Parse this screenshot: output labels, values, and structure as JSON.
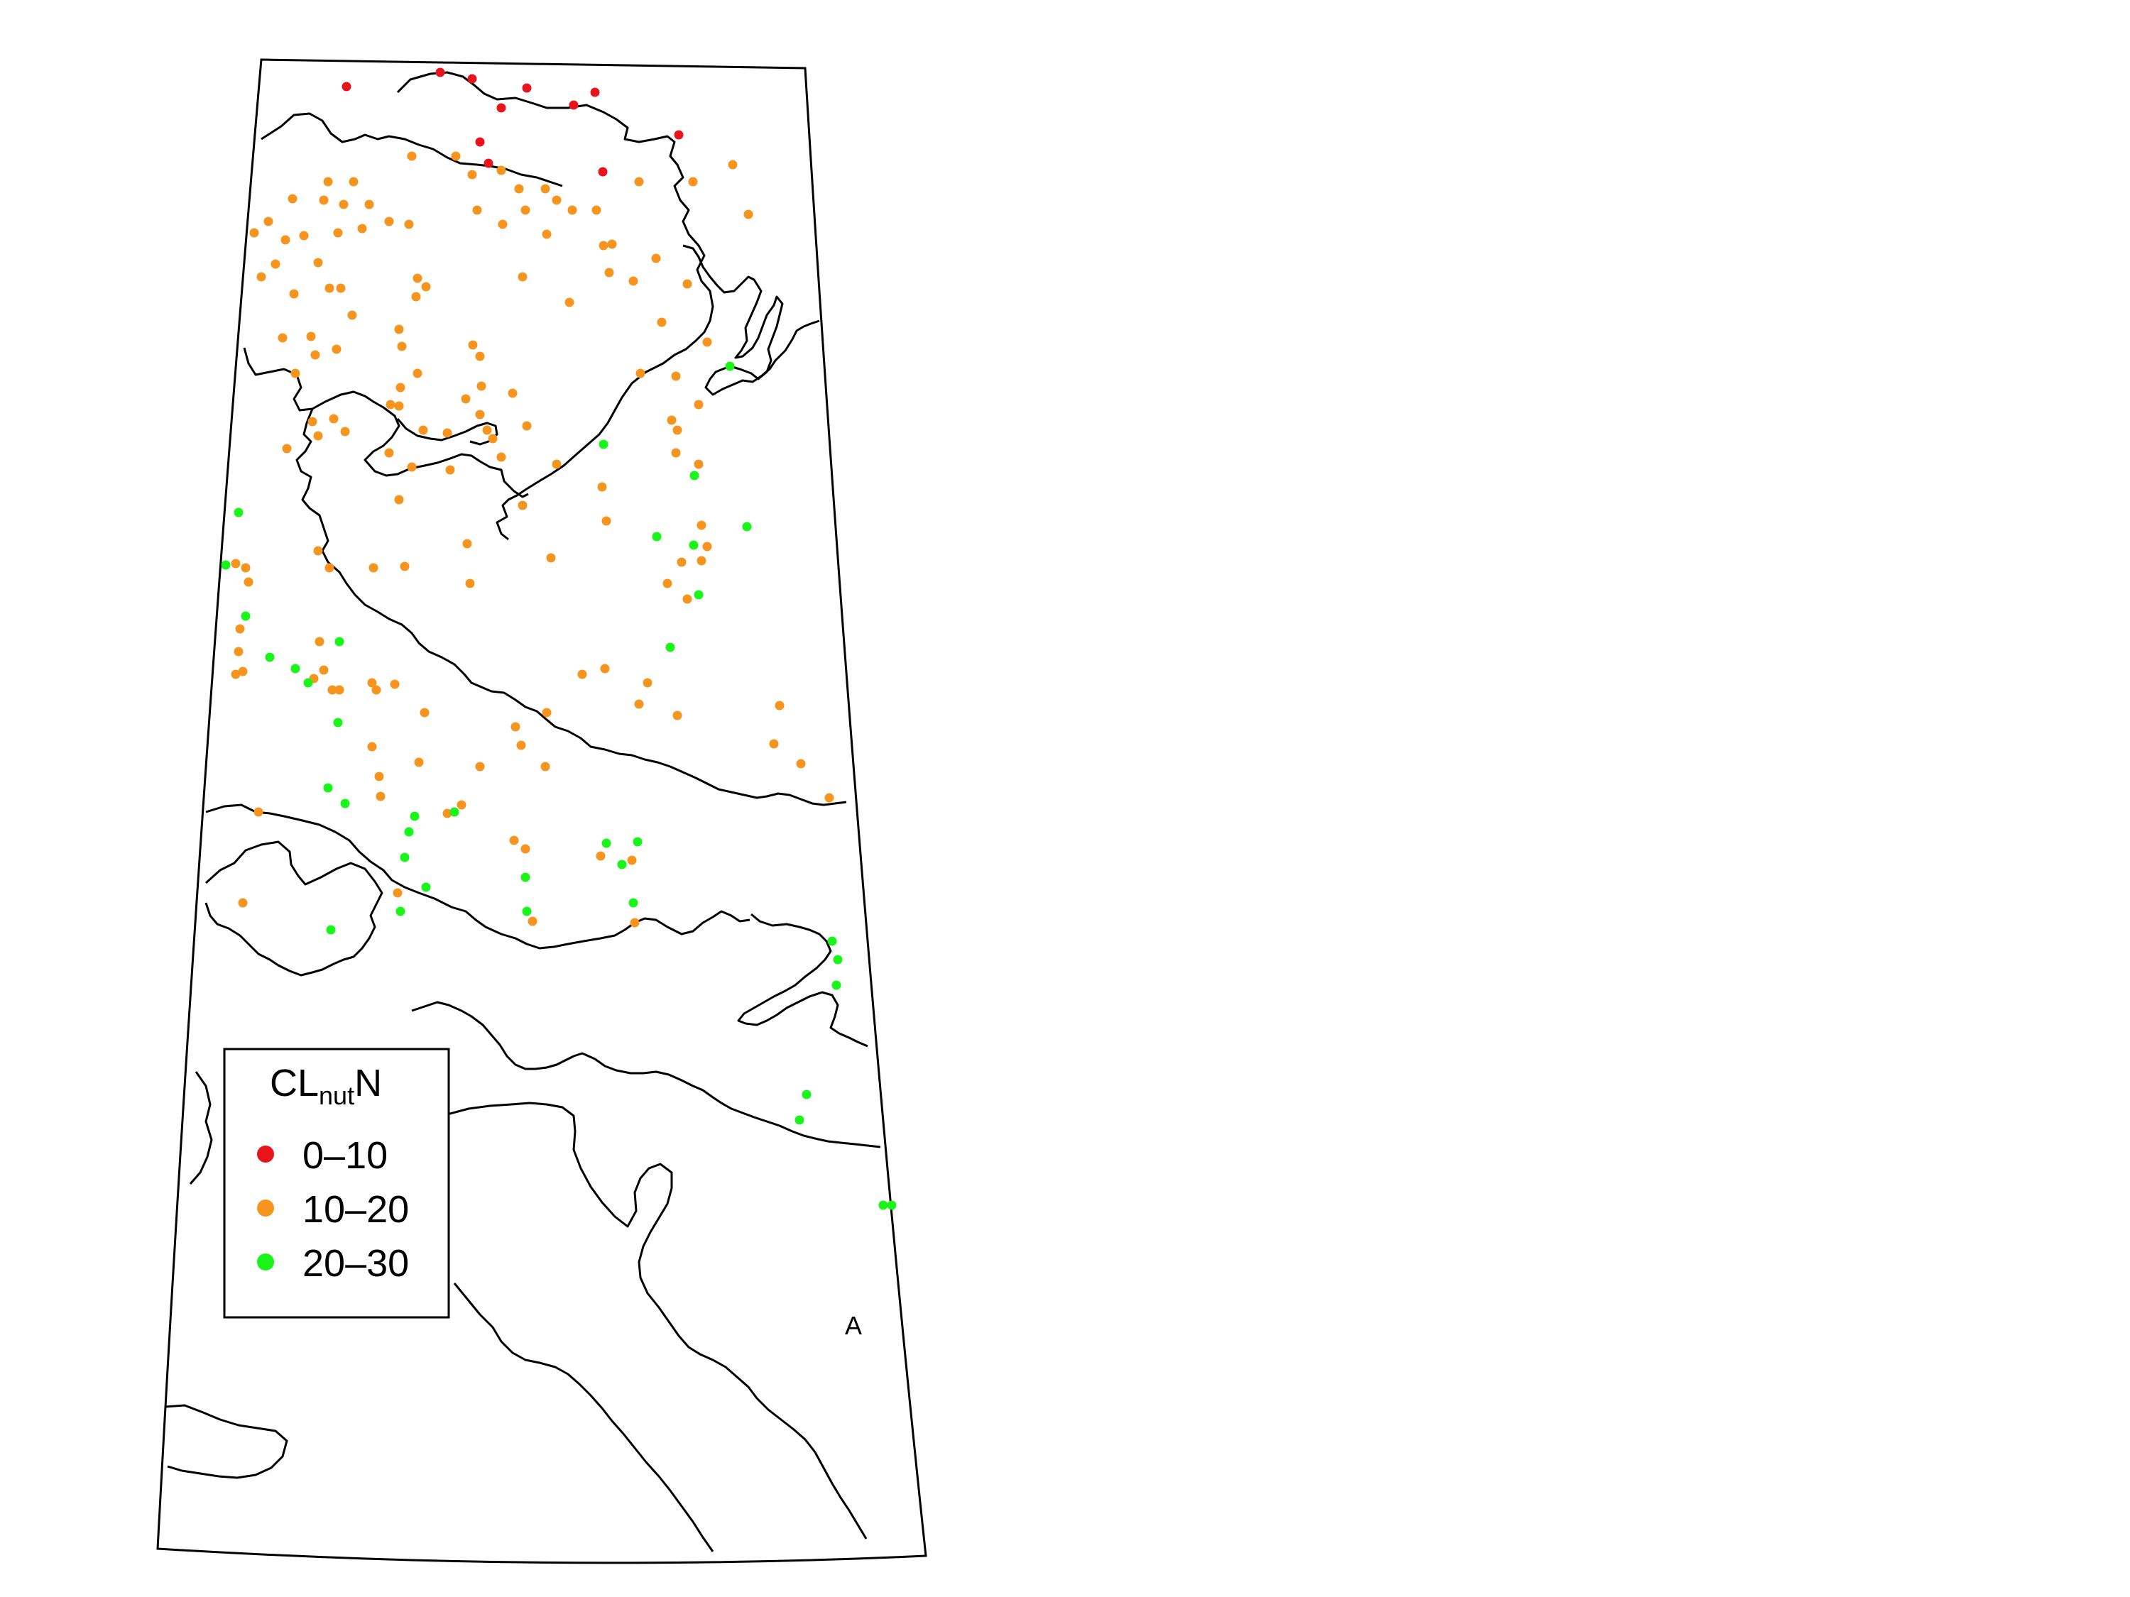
{
  "panel_label": "A",
  "legend": {
    "title_main": "CL",
    "title_sub": "nut",
    "title_end": "N",
    "classes": [
      {
        "label": "0–10",
        "color": "#e8141c"
      },
      {
        "label": "10–20",
        "color": "#f7941d"
      },
      {
        "label": "20–30",
        "color": "#19f419"
      }
    ]
  },
  "sites": {
    "0-10": [
      [
        488,
        122
      ],
      [
        620,
        102
      ],
      [
        665,
        111
      ],
      [
        742,
        124
      ],
      [
        808,
        148
      ],
      [
        838,
        130
      ],
      [
        706,
        152
      ],
      [
        676,
        200
      ],
      [
        688,
        230
      ],
      [
        956,
        190
      ],
      [
        849,
        242
      ]
    ],
    "10-20": [
      [
        462,
        256
      ],
      [
        498,
        256
      ],
      [
        580,
        220
      ],
      [
        642,
        220
      ],
      [
        665,
        246
      ],
      [
        706,
        240
      ],
      [
        731,
        266
      ],
      [
        768,
        266
      ],
      [
        784,
        282
      ],
      [
        740,
        296
      ],
      [
        840,
        296
      ],
      [
        900,
        256
      ],
      [
        1032,
        232
      ],
      [
        976,
        256
      ],
      [
        1054,
        302
      ],
      [
        358,
        328
      ],
      [
        378,
        312
      ],
      [
        412,
        280
      ],
      [
        456,
        282
      ],
      [
        484,
        288
      ],
      [
        428,
        332
      ],
      [
        402,
        338
      ],
      [
        448,
        370
      ],
      [
        476,
        328
      ],
      [
        510,
        322
      ],
      [
        548,
        312
      ],
      [
        576,
        316
      ],
      [
        520,
        288
      ],
      [
        672,
        296
      ],
      [
        708,
        316
      ],
      [
        770,
        330
      ],
      [
        862,
        344
      ],
      [
        924,
        364
      ],
      [
        892,
        396
      ],
      [
        858,
        384
      ],
      [
        806,
        296
      ],
      [
        480,
        406
      ],
      [
        368,
        390
      ],
      [
        388,
        372
      ],
      [
        414,
        414
      ],
      [
        464,
        406
      ],
      [
        588,
        392
      ],
      [
        600,
        404
      ],
      [
        586,
        418
      ],
      [
        496,
        444
      ],
      [
        438,
        474
      ],
      [
        398,
        476
      ],
      [
        416,
        526
      ],
      [
        444,
        500
      ],
      [
        474,
        492
      ],
      [
        562,
        464
      ],
      [
        566,
        488
      ],
      [
        588,
        526
      ],
      [
        564,
        546
      ],
      [
        666,
        486
      ],
      [
        676,
        502
      ],
      [
        678,
        544
      ],
      [
        656,
        562
      ],
      [
        722,
        554
      ],
      [
        736,
        390
      ],
      [
        802,
        426
      ],
      [
        850,
        346
      ],
      [
        968,
        400
      ],
      [
        902,
        526
      ],
      [
        932,
        454
      ],
      [
        952,
        530
      ],
      [
        946,
        592
      ],
      [
        996,
        482
      ],
      [
        984,
        570
      ],
      [
        440,
        594
      ],
      [
        470,
        590
      ],
      [
        550,
        570
      ],
      [
        562,
        572
      ],
      [
        596,
        606
      ],
      [
        630,
        610
      ],
      [
        676,
        584
      ],
      [
        686,
        606
      ],
      [
        706,
        644
      ],
      [
        742,
        600
      ],
      [
        694,
        618
      ],
      [
        404,
        632
      ],
      [
        448,
        614
      ],
      [
        486,
        608
      ],
      [
        548,
        638
      ],
      [
        580,
        658
      ],
      [
        634,
        662
      ],
      [
        562,
        704
      ],
      [
        736,
        712
      ],
      [
        784,
        654
      ],
      [
        848,
        686
      ],
      [
        854,
        734
      ],
      [
        952,
        638
      ],
      [
        954,
        606
      ],
      [
        984,
        654
      ],
      [
        988,
        740
      ],
      [
        996,
        770
      ],
      [
        988,
        790
      ],
      [
        960,
        792
      ],
      [
        940,
        822
      ],
      [
        968,
        844
      ],
      [
        658,
        766
      ],
      [
        662,
        822
      ],
      [
        776,
        786
      ],
      [
        570,
        798
      ],
      [
        526,
        800
      ],
      [
        448,
        776
      ],
      [
        464,
        800
      ],
      [
        332,
        794
      ],
      [
        346,
        800
      ],
      [
        350,
        820
      ],
      [
        450,
        904
      ],
      [
        442,
        956
      ],
      [
        456,
        944
      ],
      [
        524,
        962
      ],
      [
        530,
        972
      ],
      [
        468,
        972
      ],
      [
        478,
        972
      ],
      [
        556,
        964
      ],
      [
        598,
        1004
      ],
      [
        524,
        1052
      ],
      [
        590,
        1074
      ],
      [
        650,
        1134
      ],
      [
        630,
        1146
      ],
      [
        676,
        1080
      ],
      [
        726,
        1024
      ],
      [
        734,
        1050
      ],
      [
        768,
        1080
      ],
      [
        770,
        1004
      ],
      [
        820,
        950
      ],
      [
        852,
        942
      ],
      [
        912,
        962
      ],
      [
        900,
        992
      ],
      [
        954,
        1008
      ],
      [
        1098,
        994
      ],
      [
        1090,
        1048
      ],
      [
        1128,
        1076
      ],
      [
        1168,
        1124
      ],
      [
        336,
        918
      ],
      [
        342,
        946
      ],
      [
        338,
        886
      ],
      [
        332,
        950
      ],
      [
        364,
        1144
      ],
      [
        534,
        1094
      ],
      [
        536,
        1122
      ],
      [
        724,
        1184
      ],
      [
        740,
        1196
      ],
      [
        846,
        1206
      ],
      [
        890,
        1212
      ],
      [
        560,
        1258
      ],
      [
        750,
        1298
      ],
      [
        894,
        1300
      ],
      [
        342,
        1272
      ]
    ],
    "20-30": [
      [
        336,
        722
      ],
      [
        318,
        796
      ],
      [
        346,
        868
      ],
      [
        380,
        926
      ],
      [
        416,
        942
      ],
      [
        434,
        962
      ],
      [
        478,
        904
      ],
      [
        476,
        1018
      ],
      [
        462,
        1110
      ],
      [
        486,
        1132
      ],
      [
        584,
        1150
      ],
      [
        576,
        1172
      ],
      [
        570,
        1208
      ],
      [
        640,
        1144
      ],
      [
        854,
        1188
      ],
      [
        898,
        1186
      ],
      [
        876,
        1218
      ],
      [
        740,
        1236
      ],
      [
        892,
        1272
      ],
      [
        600,
        1250
      ],
      [
        564,
        1284
      ],
      [
        742,
        1284
      ],
      [
        466,
        1310
      ],
      [
        1028,
        516
      ],
      [
        850,
        626
      ],
      [
        978,
        670
      ],
      [
        925,
        756
      ],
      [
        977,
        768
      ],
      [
        1052,
        742
      ],
      [
        984,
        838
      ],
      [
        944,
        912
      ],
      [
        1172,
        1326
      ],
      [
        1180,
        1352
      ],
      [
        1178,
        1388
      ],
      [
        1136,
        1542
      ],
      [
        1126,
        1578
      ],
      [
        1244,
        1698
      ],
      [
        1256,
        1698
      ]
    ]
  }
}
